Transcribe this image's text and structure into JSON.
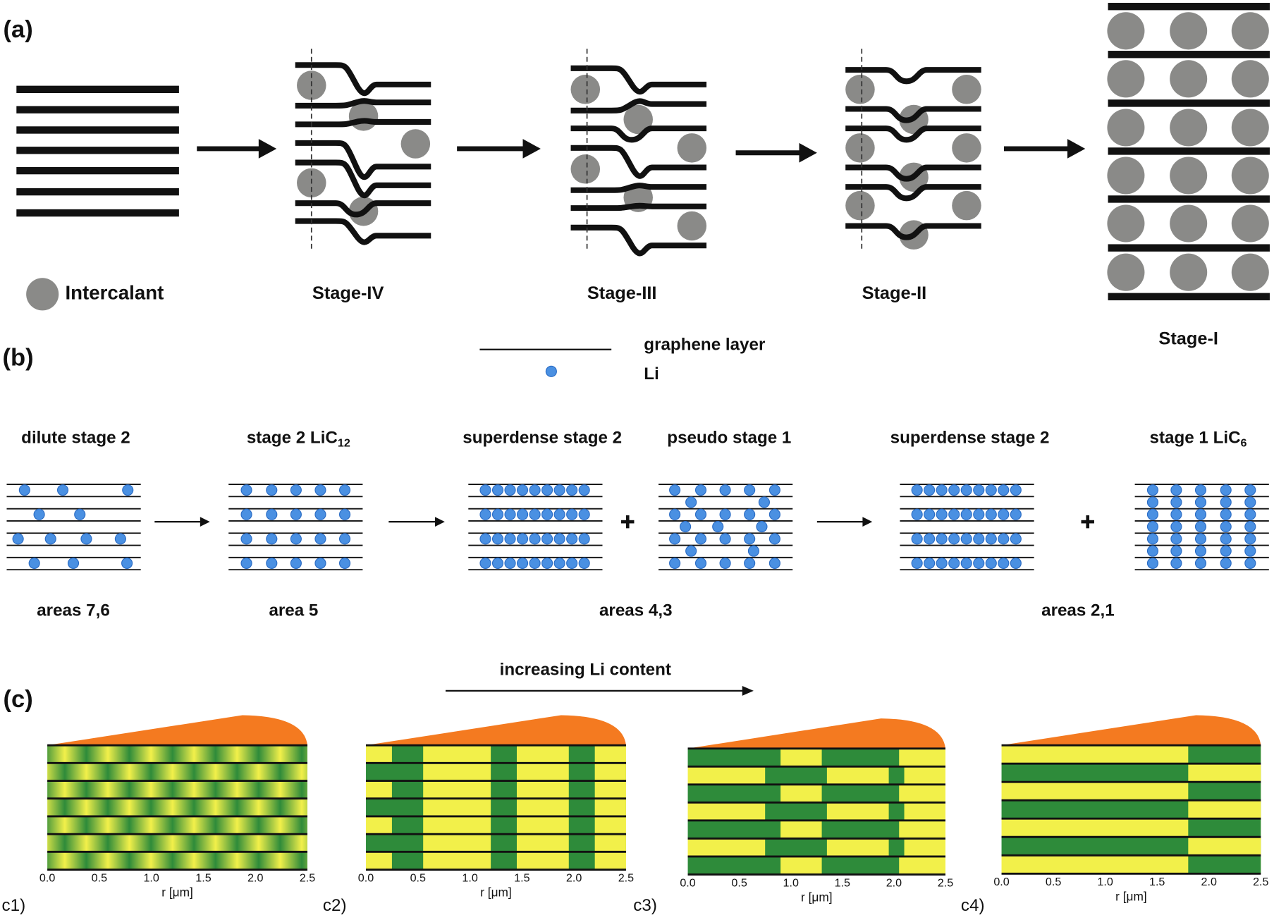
{
  "a": {
    "label": "(a)",
    "legend": "Intercalant",
    "stages": [
      "Stage-IV",
      "Stage-III",
      "Stage-II",
      "Stage-I"
    ]
  },
  "b": {
    "label": "(b)",
    "legend": {
      "line": "graphene layer",
      "dot": "Li"
    },
    "states": [
      {
        "text": "dilute stage 2"
      },
      {
        "text": "stage 2 LiC",
        "sub": "12"
      },
      {
        "text": "superdense stage 2"
      },
      {
        "text": "pseudo stage 1"
      },
      {
        "text": "superdense stage 2"
      },
      {
        "text": "stage 1 LiC",
        "sub": "6"
      }
    ],
    "areas": [
      "areas 7,6",
      "area 5",
      "areas 4,3",
      "areas 2,1"
    ]
  },
  "c": {
    "label": "(c)",
    "arrow_label": "increasing Li content",
    "x_ticks": [
      "0.0",
      "0.5",
      "1.0",
      "1.5",
      "2.0",
      "2.5"
    ],
    "x_label": "r [μm]",
    "subplots": [
      "c1)",
      "c2)",
      "c3)",
      "c4)"
    ]
  }
}
